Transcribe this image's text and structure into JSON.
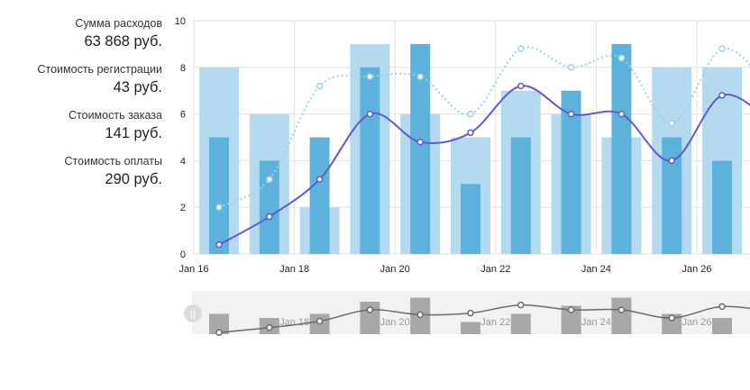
{
  "stats": [
    {
      "label": "Сумма расходов",
      "value": "63 868 руб."
    },
    {
      "label": "Стоимость регистрации",
      "value": "43 руб."
    },
    {
      "label": "Стоимость заказа",
      "value": "141 руб."
    },
    {
      "label": "Стоимость оплаты",
      "value": "290 руб."
    }
  ],
  "chart_data": {
    "type": "bar",
    "title": "",
    "xlabel": "",
    "ylabel": "",
    "ylim": [
      0,
      10
    ],
    "yticks": [
      "0",
      "2",
      "4",
      "6",
      "8",
      "10"
    ],
    "xticks": [
      "Jan 16",
      "Jan 18",
      "Jan 20",
      "Jan 22",
      "Jan 24",
      "Jan 26"
    ],
    "x": [
      0,
      1,
      2,
      3,
      4,
      5,
      6,
      7,
      8,
      9,
      10,
      11
    ],
    "series": [
      {
        "name": "bars-light",
        "kind": "bar",
        "color": "#b3daee",
        "values": [
          8,
          6,
          2,
          9,
          6,
          5,
          7,
          6,
          5,
          8,
          8,
          6
        ]
      },
      {
        "name": "bars-dark",
        "kind": "bar",
        "color": "#5db2dc",
        "values": [
          5,
          4,
          5,
          8,
          9,
          3,
          5,
          7,
          9,
          5,
          4,
          5
        ]
      },
      {
        "name": "line-solid",
        "kind": "line",
        "color": "#6259cf",
        "values": [
          0.4,
          1.6,
          3.2,
          6,
          4.8,
          5.2,
          7.2,
          6,
          6,
          4,
          6.8,
          5.6
        ]
      },
      {
        "name": "line-dotted",
        "kind": "line",
        "color": "#9bd1ec",
        "values": [
          2,
          3.2,
          7.2,
          7.6,
          7.6,
          6,
          8.8,
          8,
          8.4,
          5.6,
          8.8,
          7
        ]
      }
    ],
    "navigator": {
      "bars": [
        5,
        4,
        5,
        8,
        9,
        3,
        5,
        7,
        9,
        5,
        4,
        5
      ],
      "line": [
        0.4,
        1.6,
        3.2,
        6,
        4.8,
        5.2,
        7.2,
        6,
        6,
        4,
        6.8,
        5.6
      ],
      "handle": "||"
    },
    "colors": {
      "grid": "#e2e2e2",
      "nav_bg": "#f2f2f2",
      "nav_bar": "#a8a8a8",
      "nav_line": "#6b6b6b"
    }
  }
}
